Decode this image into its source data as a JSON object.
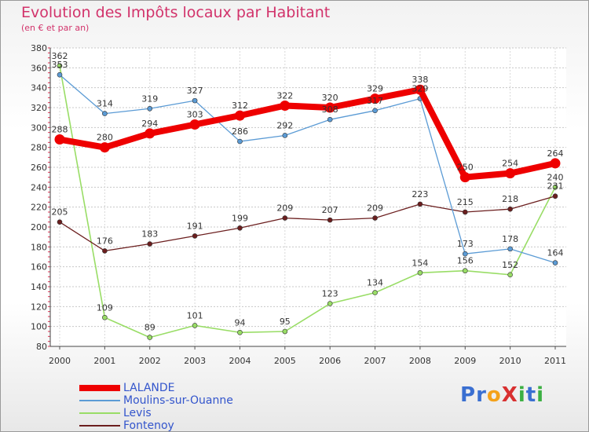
{
  "chart_data": {
    "type": "line",
    "title": "Evolution des Impôts locaux par Habitant",
    "subtitle": "(en € et par an)",
    "xlabel": "",
    "ylabel": "",
    "categories": [
      "2000",
      "2001",
      "2002",
      "2003",
      "2004",
      "2005",
      "2006",
      "2007",
      "2008",
      "2009",
      "2010",
      "2011"
    ],
    "ylim": [
      80,
      380
    ],
    "yticks": [
      "80",
      "100",
      "120",
      "140",
      "160",
      "180",
      "200",
      "220",
      "240",
      "260",
      "280",
      "300",
      "320",
      "340",
      "360",
      "380"
    ],
    "grid": "horizontal",
    "legend_position": "bottom-left",
    "series": [
      {
        "name": "LALANDE",
        "color": "#ee0000",
        "values": [
          288,
          280,
          294,
          303,
          312,
          322,
          320,
          329,
          338,
          250,
          254,
          264
        ],
        "labels": [
          "288",
          "280",
          "294",
          "303",
          "312",
          "322",
          "320",
          "329",
          "338",
          "250",
          "254",
          "264"
        ]
      },
      {
        "name": "Moulins-sur-Ouanne",
        "color": "#5b9bd5",
        "values": [
          353,
          314,
          319,
          327,
          286,
          292,
          308,
          317,
          329,
          173,
          178,
          164
        ],
        "labels": [
          "353",
          "314",
          "319",
          "327",
          "286",
          "292",
          "308",
          "317",
          "329",
          "173",
          "178",
          "164"
        ]
      },
      {
        "name": "Levis",
        "color": "#99dd66",
        "values": [
          362,
          109,
          89,
          101,
          94,
          95,
          123,
          134,
          154,
          156,
          152,
          240
        ],
        "labels": [
          "362",
          "109",
          "89",
          "101",
          "94",
          "95",
          "123",
          "134",
          "154",
          "156",
          "152",
          "240"
        ]
      },
      {
        "name": "Fontenoy",
        "color": "#6b1e1e",
        "values": [
          205,
          176,
          183,
          191,
          199,
          209,
          207,
          209,
          223,
          215,
          218,
          231
        ],
        "labels": [
          "205",
          "176",
          "183",
          "191",
          "199",
          "209",
          "207",
          "209",
          "223",
          "215",
          "218",
          "231"
        ]
      }
    ]
  },
  "logo": {
    "text": "ProXiti",
    "letters": [
      "P",
      "r",
      "o",
      "X",
      "i",
      "t",
      "i"
    ],
    "colors": [
      "#3a6fd1",
      "#3a6fd1",
      "#f4a21b",
      "#d83030",
      "#3cb043",
      "#3a6fd1",
      "#3cb043"
    ]
  }
}
